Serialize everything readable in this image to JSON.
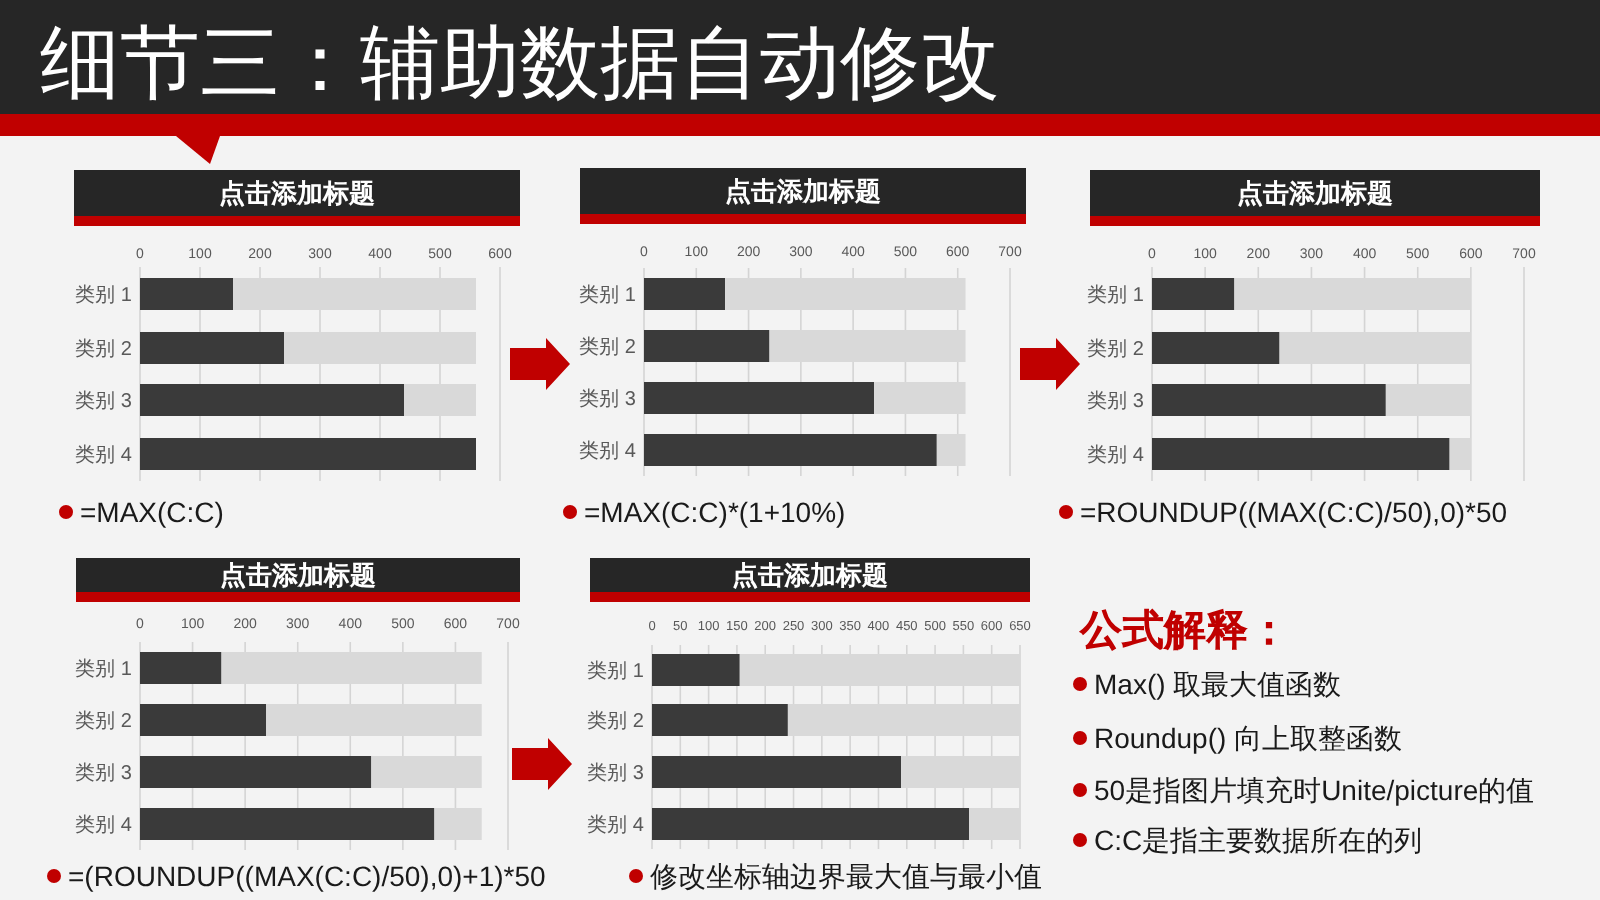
{
  "chart_data": [
    {
      "type": "other",
      "title": "细节三：辅助数据自动修改"
    },
    {
      "type": "bar",
      "title": "点击添加标题",
      "orientation": "horizontal",
      "stacked": true,
      "categories": [
        "类别 1",
        "类别 2",
        "类别 3",
        "类别 4"
      ],
      "series": [
        {
          "color": "#3a3a3a",
          "values": [
            155,
            240,
            440,
            560
          ]
        },
        {
          "color": "#d9d9d9",
          "values": [
            405,
            320,
            120,
            null
          ]
        }
      ],
      "xlim": [
        0,
        600
      ],
      "xticks": [
        0,
        100,
        200,
        300,
        400,
        500,
        600
      ],
      "grid": "x",
      "annotations": [
        "=MAX(C:C)"
      ]
    },
    {
      "type": "bar",
      "title": "点击添加标题",
      "orientation": "horizontal",
      "stacked": true,
      "categories": [
        "类别 1",
        "类别 2",
        "类别 3",
        "类别 4"
      ],
      "series": [
        {
          "color": "#3a3a3a",
          "values": [
            155,
            240,
            440,
            560
          ]
        },
        {
          "color": "#d9d9d9",
          "values": [
            460,
            375,
            175,
            55
          ]
        }
      ],
      "xlim": [
        0,
        700
      ],
      "xticks": [
        0,
        100,
        200,
        300,
        400,
        500,
        600,
        700
      ],
      "grid": "x",
      "annotations": [
        "=MAX(C:C)*(1+10%)"
      ]
    },
    {
      "type": "bar",
      "title": "点击添加标题",
      "orientation": "horizontal",
      "stacked": true,
      "categories": [
        "类别 1",
        "类别 2",
        "类别 3",
        "类别 4"
      ],
      "series": [
        {
          "color": "#3a3a3a",
          "values": [
            155,
            240,
            440,
            560
          ]
        },
        {
          "color": "#d9d9d9",
          "values": [
            445,
            360,
            160,
            40
          ]
        }
      ],
      "xlim": [
        0,
        700
      ],
      "xticks": [
        0,
        100,
        200,
        300,
        400,
        500,
        600,
        700
      ],
      "grid": "x",
      "annotations": [
        "=ROUNDUP((MAX(C:C)/50),0)*50"
      ]
    },
    {
      "type": "bar",
      "title": "点击添加标题",
      "orientation": "horizontal",
      "stacked": true,
      "categories": [
        "类别 1",
        "类别 2",
        "类别 3",
        "类别 4"
      ],
      "series": [
        {
          "color": "#3a3a3a",
          "values": [
            155,
            240,
            440,
            560
          ]
        },
        {
          "color": "#d9d9d9",
          "values": [
            495,
            410,
            210,
            90
          ]
        }
      ],
      "xlim": [
        0,
        700
      ],
      "xticks": [
        0,
        100,
        200,
        300,
        400,
        500,
        600,
        700
      ],
      "grid": "x",
      "annotations": [
        "=(ROUNDUP((MAX(C:C)/50),0)+1)*50"
      ]
    },
    {
      "type": "bar",
      "title": "点击添加标题",
      "orientation": "horizontal",
      "stacked": true,
      "categories": [
        "类别 1",
        "类别 2",
        "类别 3",
        "类别 4"
      ],
      "series": [
        {
          "color": "#3a3a3a",
          "values": [
            155,
            240,
            440,
            560
          ]
        },
        {
          "color": "#d9d9d9",
          "values": [
            495,
            410,
            210,
            90
          ]
        }
      ],
      "xlim": [
        0,
        650
      ],
      "xticks": [
        0,
        50,
        100,
        150,
        200,
        250,
        300,
        350,
        400,
        450,
        500,
        550,
        600,
        650
      ],
      "grid": "x",
      "annotations": [
        "修改坐标轴边界最大值与最小值"
      ]
    },
    {
      "type": "other",
      "title": "公式解释：",
      "annotations": [
        "Max() 取最大值函数",
        "Roundup() 向上取整函数",
        "50是指图片填充时Unite/picture的值",
        "C:C是指主要数据所在的列"
      ]
    }
  ]
}
